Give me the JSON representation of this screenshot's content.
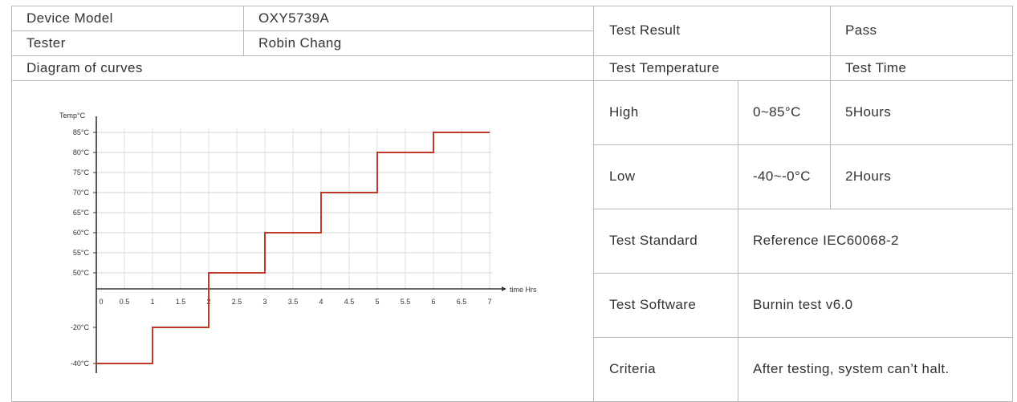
{
  "left": {
    "device_model_label": "Device Model",
    "device_model_value": "OXY5739A",
    "tester_label": "Tester",
    "tester_value": "Robin Chang",
    "diagram_label": "Diagram of curves"
  },
  "right": {
    "test_result_label": "Test Result",
    "test_result_value": "Pass",
    "test_temperature_label": "Test Temperature",
    "test_time_label": "Test Time",
    "high_label": "High",
    "high_range": "0~85°C",
    "high_time": "5Hours",
    "low_label": "Low",
    "low_range": "-40~-0°C",
    "low_time": "2Hours",
    "standard_label": "Test Standard",
    "standard_value": "Reference IEC60068-2",
    "software_label": "Test Software",
    "software_value": "Burnin test v6.0",
    "criteria_label": "Criteria",
    "criteria_value": "After testing, system can’t halt."
  },
  "chart_data": {
    "type": "line",
    "ylabel": "Temp°C",
    "xlabel": "time Hrs",
    "x_ticks": [
      "0",
      "0.5",
      "1",
      "1.5",
      "2",
      "2.5",
      "3",
      "3.5",
      "4",
      "4.5",
      "5",
      "5.5",
      "6",
      "6.5",
      "7"
    ],
    "y_ticks_positive": [
      "50°C",
      "55°C",
      "60°C",
      "65°C",
      "70°C",
      "75°C",
      "80°C",
      "85°C"
    ],
    "y_ticks_negative": [
      "-20°C",
      "-40°C"
    ],
    "grid": true,
    "line_color": "#c0392b",
    "steps": [
      {
        "x_start": 0,
        "x_end": 1,
        "y": -40
      },
      {
        "x_start": 1,
        "x_end": 2,
        "y": -20
      },
      {
        "x_start": 2,
        "x_end": 3,
        "y": 50
      },
      {
        "x_start": 3,
        "x_end": 4,
        "y": 60
      },
      {
        "x_start": 4,
        "x_end": 5,
        "y": 70
      },
      {
        "x_start": 5,
        "x_end": 6,
        "y": 80
      },
      {
        "x_start": 6,
        "x_end": 7,
        "y": 85
      }
    ]
  }
}
